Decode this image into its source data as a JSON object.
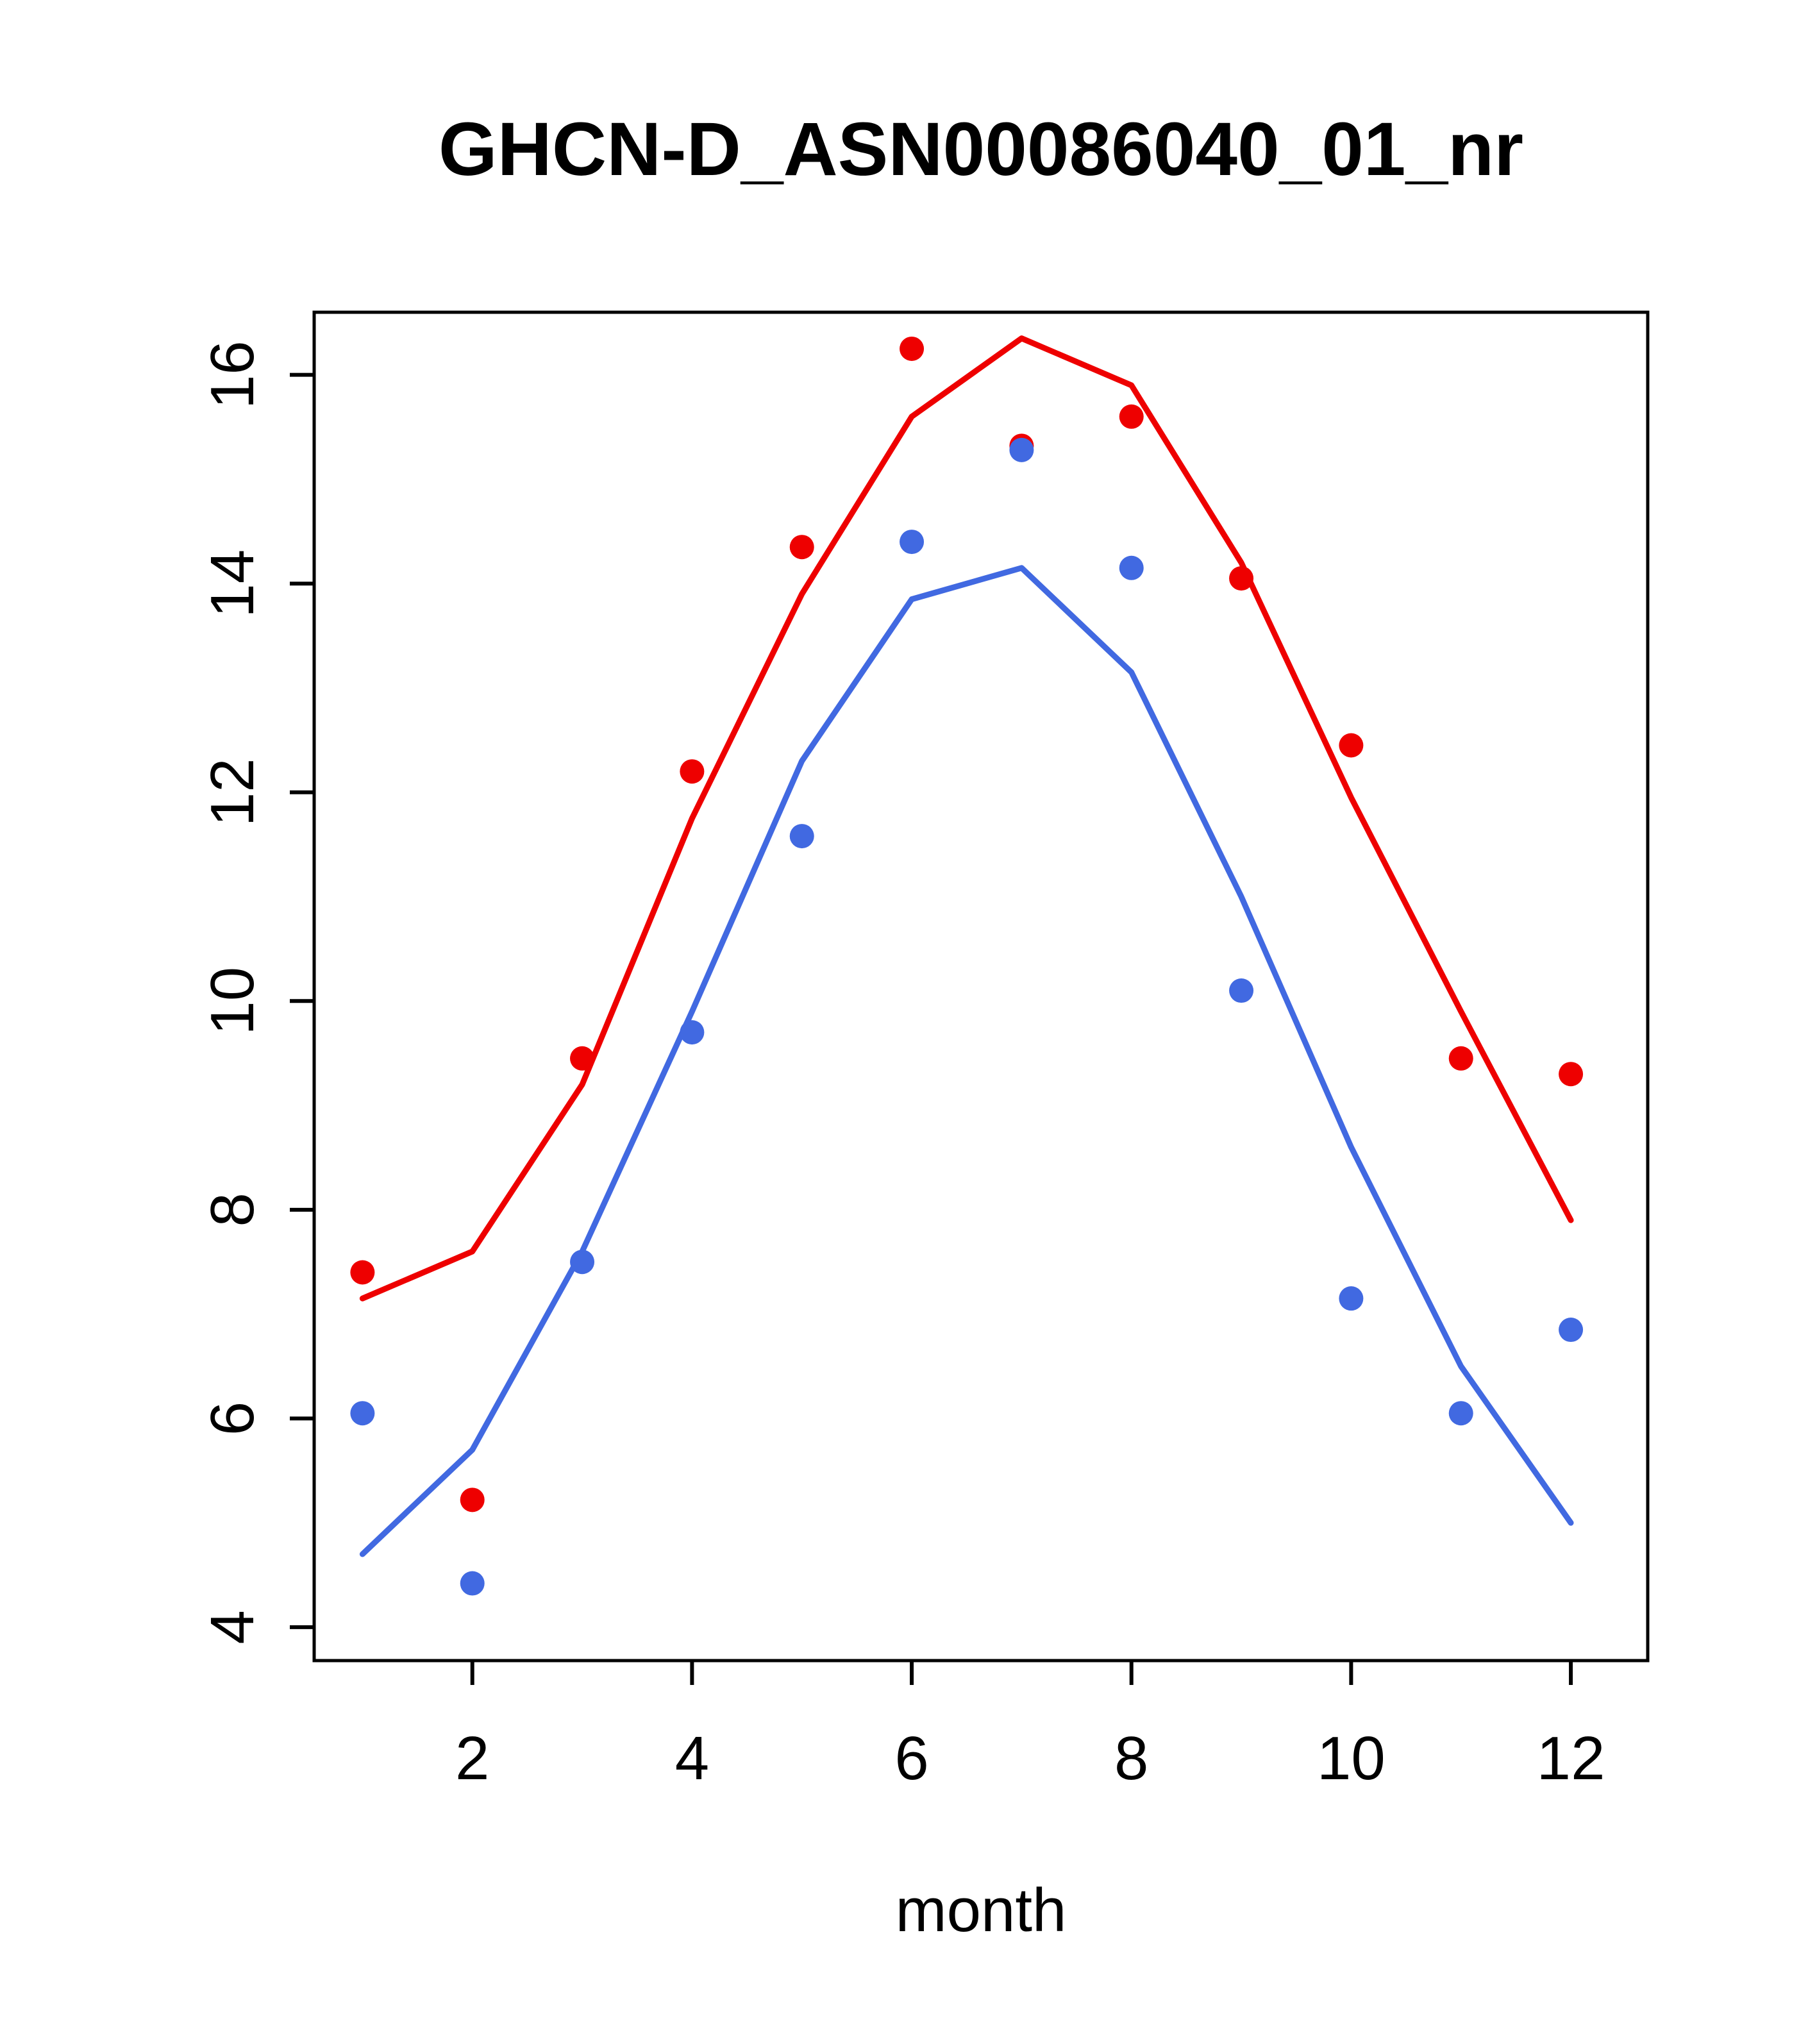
{
  "page": {
    "background": "#ffffff"
  },
  "chart_data": {
    "type": "line",
    "title": "GHCN-D_ASN00086040_01_nr",
    "xlabel": "month",
    "ylabel": "",
    "x": [
      1,
      2,
      3,
      4,
      5,
      6,
      7,
      8,
      9,
      10,
      11,
      12
    ],
    "series": [
      {
        "name": "red-fit-line",
        "type": "line",
        "color": "#EE0000",
        "values": [
          7.15,
          7.6,
          9.2,
          11.75,
          13.9,
          15.6,
          16.35,
          15.9,
          14.2,
          11.95,
          9.9,
          7.9
        ]
      },
      {
        "name": "red-points",
        "type": "scatter",
        "color": "#EE0000",
        "values": [
          7.4,
          5.22,
          9.45,
          12.2,
          14.35,
          16.25,
          15.32,
          15.6,
          14.05,
          12.45,
          9.45,
          9.3
        ]
      },
      {
        "name": "blue-fit-line",
        "type": "line",
        "color": "#4169E1",
        "values": [
          4.7,
          5.7,
          7.6,
          9.9,
          12.3,
          13.85,
          14.15,
          13.15,
          11.0,
          8.6,
          6.5,
          5.0
        ]
      },
      {
        "name": "blue-points",
        "type": "scatter",
        "color": "#4169E1",
        "values": [
          6.05,
          4.42,
          7.5,
          9.7,
          11.58,
          14.4,
          15.28,
          14.15,
          10.1,
          7.15,
          6.05,
          6.85
        ]
      }
    ],
    "x_ticks": [
      2,
      4,
      6,
      8,
      10,
      12
    ],
    "y_ticks": [
      4,
      6,
      8,
      10,
      12,
      14,
      16
    ],
    "xlim": [
      0.56,
      12.7
    ],
    "ylim": [
      3.68,
      16.6
    ],
    "grid": false,
    "legend": "none",
    "axis_color": "#000000"
  }
}
